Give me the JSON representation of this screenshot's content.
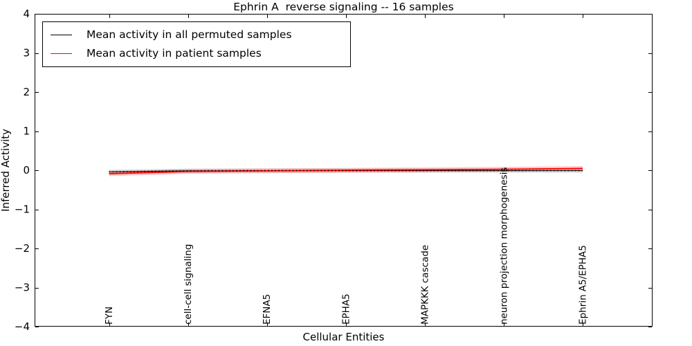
{
  "chart_data": {
    "type": "line",
    "title": "Ephrin A  reverse signaling -- 16 samples",
    "xlabel": "Cellular Entities",
    "ylabel": "Inferred Activity",
    "ylim": [
      -4,
      4
    ],
    "grid": false,
    "legend_position": "upper left",
    "ytick_values": [
      4,
      3,
      2,
      1,
      0,
      -1,
      -2,
      -3,
      -4
    ],
    "ytick_labels": [
      "4",
      "3",
      "2",
      "1",
      "0",
      "−1",
      "−2",
      "−3",
      "−4"
    ],
    "categories": [
      "FYN",
      "cell-cell signaling",
      "EFNA5",
      "EPHA5",
      "MAPKKK cascade",
      "neuron projection morphogenesis",
      "Ephrin A5/EPHA5"
    ],
    "zero_line_value": 0,
    "series": [
      {
        "name": "Mean activity in all permuted samples",
        "color": "#000000",
        "line_width": 1,
        "dotted_overlay": true,
        "values": [
          -0.04,
          -0.015,
          -0.01,
          -0.01,
          -0.01,
          -0.01,
          -0.01
        ],
        "band_halfwidth": 0.055,
        "band_color": "rgba(0,0,0,0.13)"
      },
      {
        "name": "Mean activity in patient samples",
        "color": "#ff0000",
        "line_width": 1.8,
        "dotted_overlay": false,
        "values": [
          -0.09,
          -0.03,
          -0.015,
          0.0,
          0.01,
          0.025,
          0.045
        ],
        "band_halfwidth": 0.06,
        "band_color": "rgba(255,0,0,0.22)"
      }
    ]
  }
}
